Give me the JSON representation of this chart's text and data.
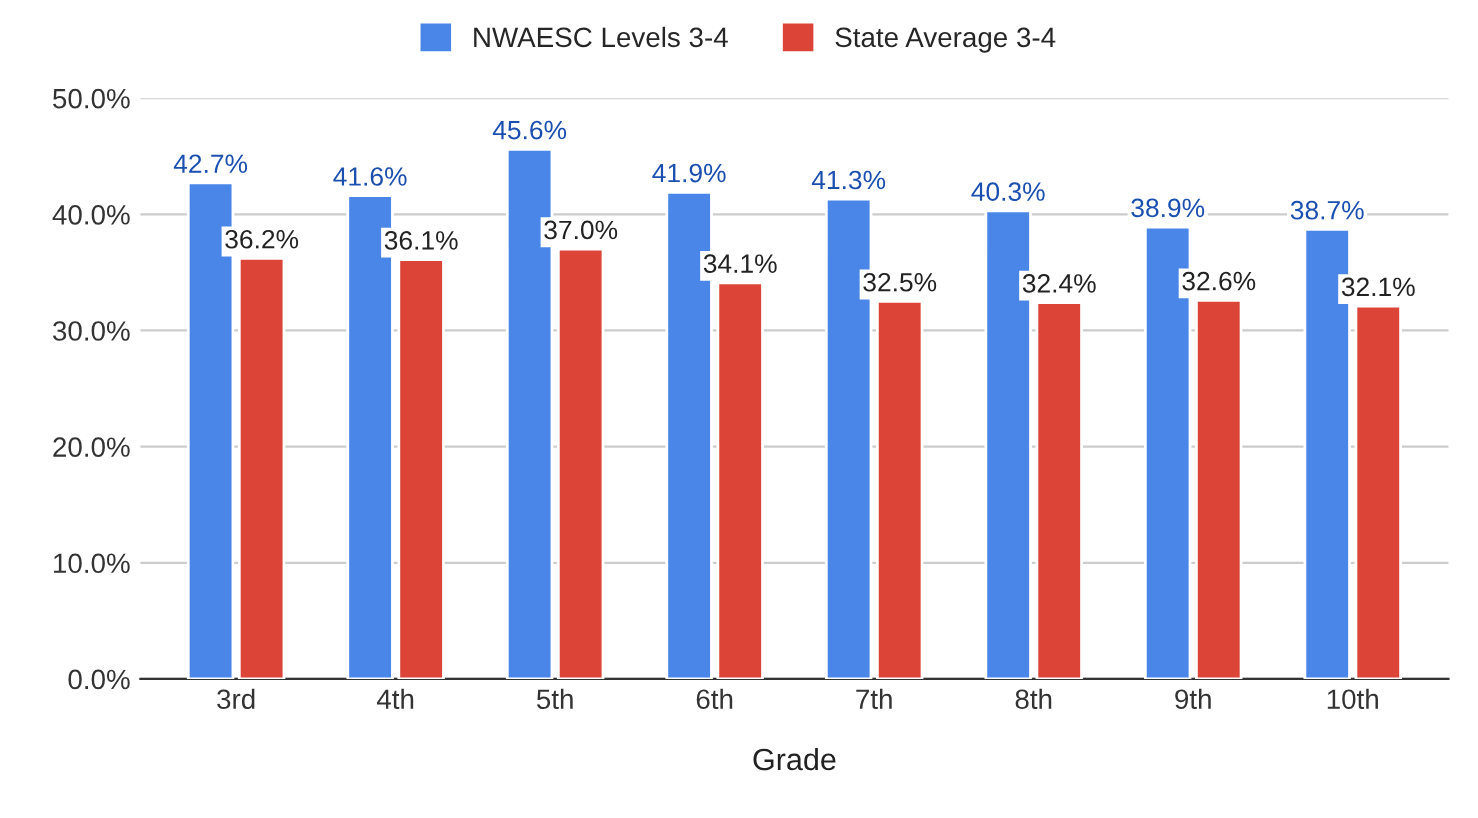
{
  "chart_data": {
    "type": "bar",
    "xlabel": "Grade",
    "categories": [
      "3rd",
      "4th",
      "5th",
      "6th",
      "7th",
      "8th",
      "9th",
      "10th"
    ],
    "series": [
      {
        "name": "NWAESC Levels 3-4",
        "color": "#4a86e8",
        "values": [
          42.7,
          41.6,
          45.6,
          41.9,
          41.3,
          40.3,
          38.9,
          38.7
        ],
        "value_labels": [
          "42.7%",
          "41.6%",
          "45.6%",
          "41.9%",
          "41.3%",
          "40.3%",
          "38.9%",
          "38.7%"
        ]
      },
      {
        "name": "State Average 3-4",
        "color": "#db4437",
        "values": [
          36.2,
          36.1,
          37.0,
          34.1,
          32.5,
          32.4,
          32.6,
          32.1
        ],
        "value_labels": [
          "36.2%",
          "36.1%",
          "37.0%",
          "34.1%",
          "32.5%",
          "32.4%",
          "32.6%",
          "32.1%"
        ]
      }
    ],
    "ylim": [
      0,
      50
    ],
    "yticks": [
      {
        "value": 0,
        "label": "0.0%"
      },
      {
        "value": 10,
        "label": "10.0%"
      },
      {
        "value": 20,
        "label": "20.0%"
      },
      {
        "value": 30,
        "label": "30.0%"
      },
      {
        "value": 40,
        "label": "40.0%"
      },
      {
        "value": 50,
        "label": "50.0%"
      }
    ],
    "grid": "y",
    "legend": "top"
  }
}
